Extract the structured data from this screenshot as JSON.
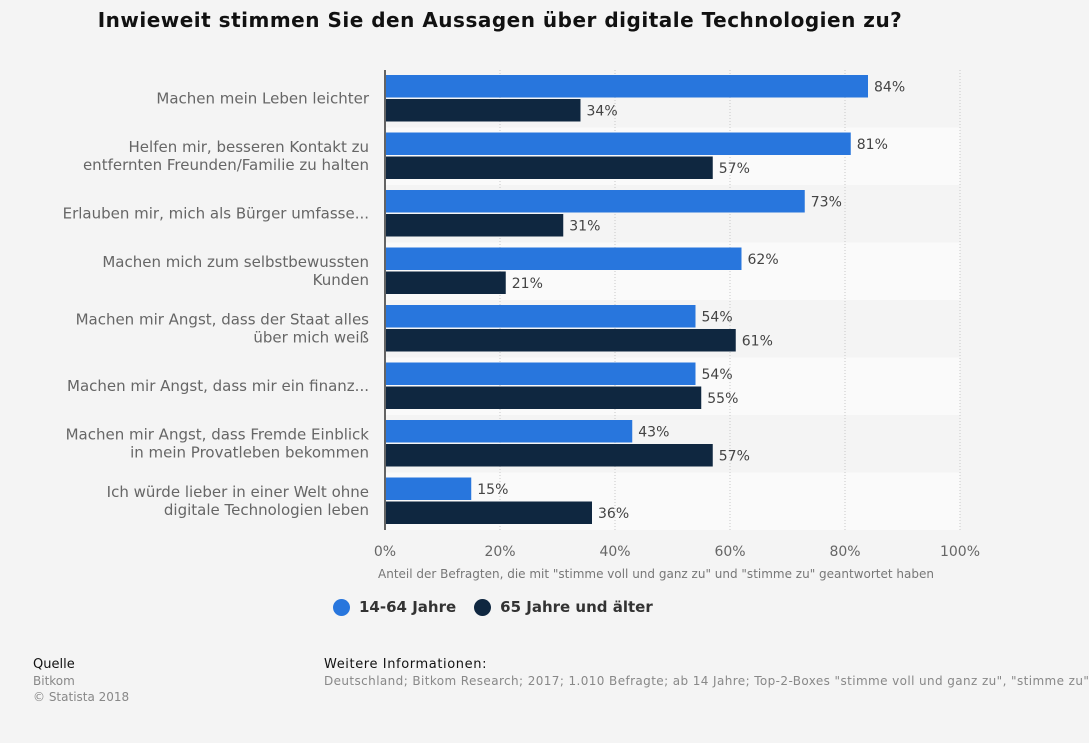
{
  "title": "Inwieweit stimmen Sie den Aussagen über digitale Technologien zu?",
  "chart_data": {
    "type": "bar",
    "orientation": "horizontal",
    "categories": [
      [
        "Machen mein Leben leichter"
      ],
      [
        "Helfen mir, besseren Kontakt zu",
        "entfernten Freunden/Familie zu halten"
      ],
      [
        "Erlauben mir, mich als Bürger umfasse..."
      ],
      [
        "Machen mich zum selbstbewussten",
        "Kunden"
      ],
      [
        "Machen mir Angst, dass der Staat alles",
        "über mich weiß"
      ],
      [
        "Machen mir Angst, dass mir ein finanz..."
      ],
      [
        "Machen mir Angst, dass Fremde Einblick",
        "in mein Provatleben bekommen"
      ],
      [
        "Ich würde lieber in einer Welt ohne",
        "digitale Technologien leben"
      ]
    ],
    "series": [
      {
        "name": "14-64 Jahre",
        "color": "#2876dd",
        "values": [
          84,
          81,
          73,
          62,
          54,
          54,
          43,
          15
        ]
      },
      {
        "name": "65 Jahre und älter",
        "color": "#0f2740",
        "values": [
          34,
          57,
          31,
          21,
          61,
          55,
          57,
          36
        ]
      }
    ],
    "xlabel": "Anteil der Befragten, die mit \"stimme voll und ganz zu\" und \"stimme zu\" geantwortet haben",
    "xlim": [
      0,
      100
    ],
    "xticks": [
      "0%",
      "20%",
      "40%",
      "60%",
      "80%",
      "100%"
    ],
    "value_suffix": "%",
    "grid": true,
    "legend_position": "bottom"
  },
  "footer": {
    "source_heading": "Quelle",
    "source_name": "Bitkom",
    "copyright": "© Statista 2018",
    "info_heading": "Weitere Informationen:",
    "info_text": "Deutschland; Bitkom Research; 2017; 1.010 Befragte; ab 14 Jahre; Top-2-Boxes \"stimme voll und ganz zu\",  \"stimme zu\""
  }
}
